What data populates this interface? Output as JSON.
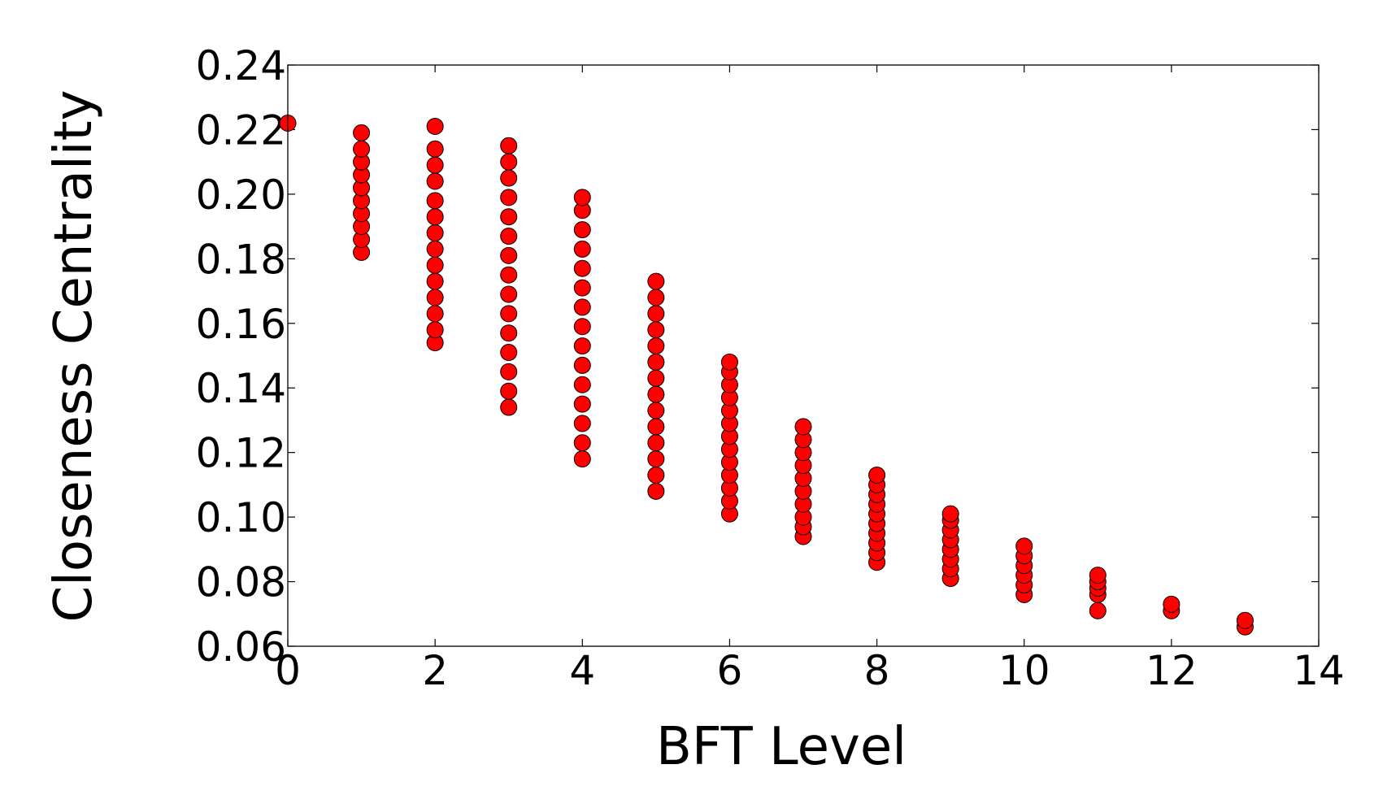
{
  "chart_data": {
    "type": "scatter",
    "x_label": "BFT Level",
    "y_label": "Closeness Centrality",
    "xlim": [
      0,
      14
    ],
    "xticks": [
      0,
      2,
      4,
      6,
      8,
      10,
      12,
      14
    ],
    "ylim": [
      0.06,
      0.24
    ],
    "yticks": [
      0.06,
      0.08,
      {
        "value": 0.1,
        "label": "0.10"
      },
      0.12,
      0.14,
      0.16,
      0.18,
      {
        "value": 0.2,
        "label": "0.20"
      },
      0.22,
      0.24
    ],
    "series": [
      {
        "color": "#ff0000",
        "x": [
          0,
          1,
          1,
          1,
          1,
          1,
          1,
          1,
          1,
          1,
          1,
          2,
          2,
          2,
          2,
          2,
          2,
          2,
          2,
          2,
          2,
          2,
          2,
          2,
          2,
          3,
          3,
          3,
          3,
          3,
          3,
          3,
          3,
          3,
          3,
          3,
          3,
          3,
          3,
          3,
          4,
          4,
          4,
          4,
          4,
          4,
          4,
          4,
          4,
          4,
          4,
          4,
          4,
          4,
          4,
          5,
          5,
          5,
          5,
          5,
          5,
          5,
          5,
          5,
          5,
          5,
          5,
          5,
          5,
          6,
          6,
          6,
          6,
          6,
          6,
          6,
          6,
          6,
          6,
          6,
          6,
          6,
          7,
          7,
          7,
          7,
          7,
          7,
          7,
          7,
          7,
          7,
          8,
          8,
          8,
          8,
          8,
          8,
          8,
          8,
          8,
          8,
          9,
          9,
          9,
          9,
          9,
          9,
          9,
          9,
          10,
          10,
          10,
          10,
          10,
          10,
          11,
          11,
          11,
          11,
          11,
          12,
          12,
          13,
          13
        ],
        "values": [
          0.222,
          0.182,
          0.186,
          0.19,
          0.194,
          0.198,
          0.202,
          0.206,
          0.21,
          0.214,
          0.219,
          0.154,
          0.158,
          0.163,
          0.168,
          0.173,
          0.178,
          0.183,
          0.188,
          0.193,
          0.198,
          0.204,
          0.209,
          0.214,
          0.221,
          0.134,
          0.139,
          0.145,
          0.151,
          0.157,
          0.163,
          0.169,
          0.175,
          0.181,
          0.187,
          0.193,
          0.199,
          0.205,
          0.21,
          0.215,
          0.118,
          0.123,
          0.129,
          0.135,
          0.141,
          0.147,
          0.153,
          0.159,
          0.165,
          0.171,
          0.177,
          0.183,
          0.189,
          0.195,
          0.199,
          0.108,
          0.113,
          0.118,
          0.123,
          0.128,
          0.133,
          0.138,
          0.143,
          0.148,
          0.153,
          0.158,
          0.163,
          0.168,
          0.173,
          0.101,
          0.105,
          0.109,
          0.113,
          0.117,
          0.121,
          0.125,
          0.129,
          0.133,
          0.137,
          0.141,
          0.145,
          0.148,
          0.094,
          0.097,
          0.1,
          0.104,
          0.108,
          0.112,
          0.116,
          0.12,
          0.124,
          0.128,
          0.086,
          0.089,
          0.092,
          0.095,
          0.098,
          0.101,
          0.104,
          0.107,
          0.11,
          0.113,
          0.081,
          0.084,
          0.087,
          0.09,
          0.093,
          0.096,
          0.099,
          0.101,
          0.076,
          0.079,
          0.082,
          0.085,
          0.088,
          0.091,
          0.071,
          0.076,
          0.078,
          0.08,
          0.082,
          0.071,
          0.073,
          0.066,
          0.068
        ]
      }
    ]
  }
}
